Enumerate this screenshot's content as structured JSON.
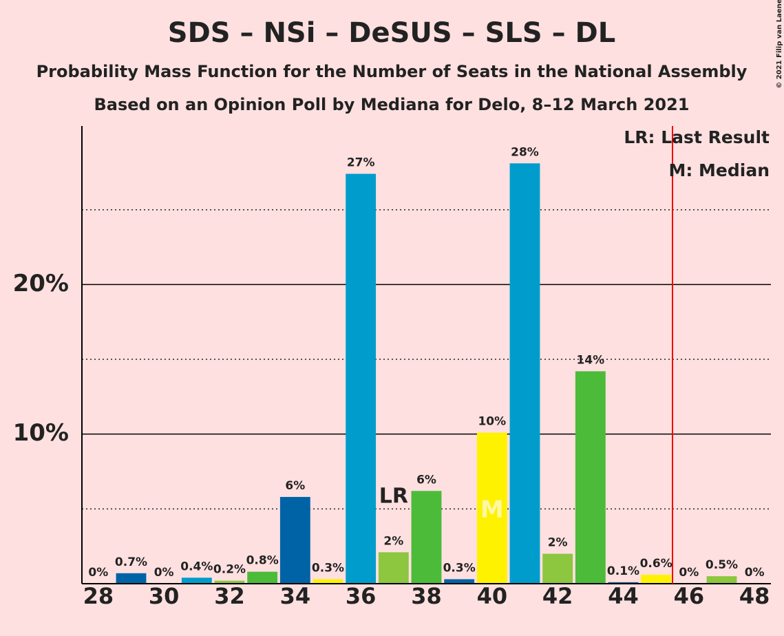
{
  "chart_data": {
    "type": "bar",
    "title": "SDS – NSi – DeSUS – SLS – DL",
    "subtitle": "Probability Mass Function for the Number of Seats in the National Assembly",
    "source_note": "Based on an Opinion Poll by Mediana for Delo, 8–12 March 2021",
    "copyright": "© 2021 Filip van Laenen",
    "x": [
      28,
      29,
      30,
      31,
      32,
      33,
      34,
      35,
      36,
      37,
      38,
      39,
      40,
      41,
      42,
      43,
      44,
      45,
      46,
      47,
      48
    ],
    "values": [
      0,
      0.7,
      0,
      0.4,
      0.2,
      0.8,
      5.8,
      0.3,
      27.4,
      2.1,
      6.2,
      0.3,
      10.1,
      28.1,
      2.0,
      14.2,
      0.1,
      0.6,
      0,
      0.5,
      0
    ],
    "value_labels": [
      "0%",
      "0.7%",
      "0%",
      "0.4%",
      "0.2%",
      "0.8%",
      "6%",
      "0.3%",
      "27%",
      "2%",
      "6%",
      "0.3%",
      "10%",
      "28%",
      "2%",
      "14%",
      "0.1%",
      "0.6%",
      "0%",
      "0.5%",
      "0%"
    ],
    "colors": [
      "#0063a6",
      "#0063a6",
      "#009ccc",
      "#009ccc",
      "#8dc63f",
      "#4cbb39",
      "#0063a6",
      "#fff200",
      "#009ccc",
      "#8dc63f",
      "#4cbb39",
      "#0063a6",
      "#fff200",
      "#009ccc",
      "#8dc63f",
      "#4cbb39",
      "#0063a6",
      "#fff200",
      "#009ccc",
      "#8dc63f",
      "#4cbb39"
    ],
    "xlim": [
      27.5,
      48.5
    ],
    "xticks": [
      28,
      30,
      32,
      34,
      36,
      38,
      40,
      42,
      44,
      46,
      48
    ],
    "ylim": [
      0,
      30.6
    ],
    "yticks": [
      {
        "value": 10,
        "label": "10%"
      },
      {
        "value": 20,
        "label": "20%"
      }
    ],
    "minor_yticks": [
      5,
      15,
      25
    ],
    "last_result": 37,
    "last_result_label": "LR",
    "median": 40,
    "median_label": "M",
    "majority_line": 45.5,
    "legend": [
      "LR: Last Result",
      "M: Median"
    ]
  }
}
